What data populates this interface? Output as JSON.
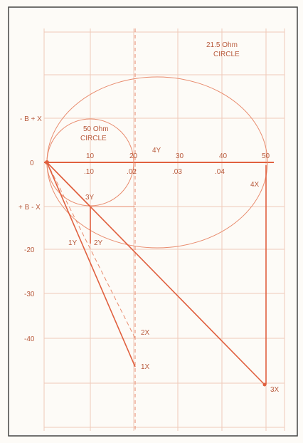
{
  "circles": [
    {
      "label": "21.5 Ohm",
      "sub": "CIRCLE"
    },
    {
      "label": "50 Ohm",
      "sub": "CIRCLE"
    }
  ],
  "y_axis_labels": [
    "- B + X",
    "0",
    "+ B - X",
    "-20",
    "-30",
    "-40"
  ],
  "x_axis_top": [
    "10",
    "20",
    "30",
    "40",
    "50"
  ],
  "x_axis_bottom": [
    ".10",
    ".02",
    ".03",
    ".04"
  ],
  "points": [
    "4Y",
    "3Y",
    "2Y",
    "1Y",
    "4X",
    "2X",
    "1X",
    "3X"
  ]
}
